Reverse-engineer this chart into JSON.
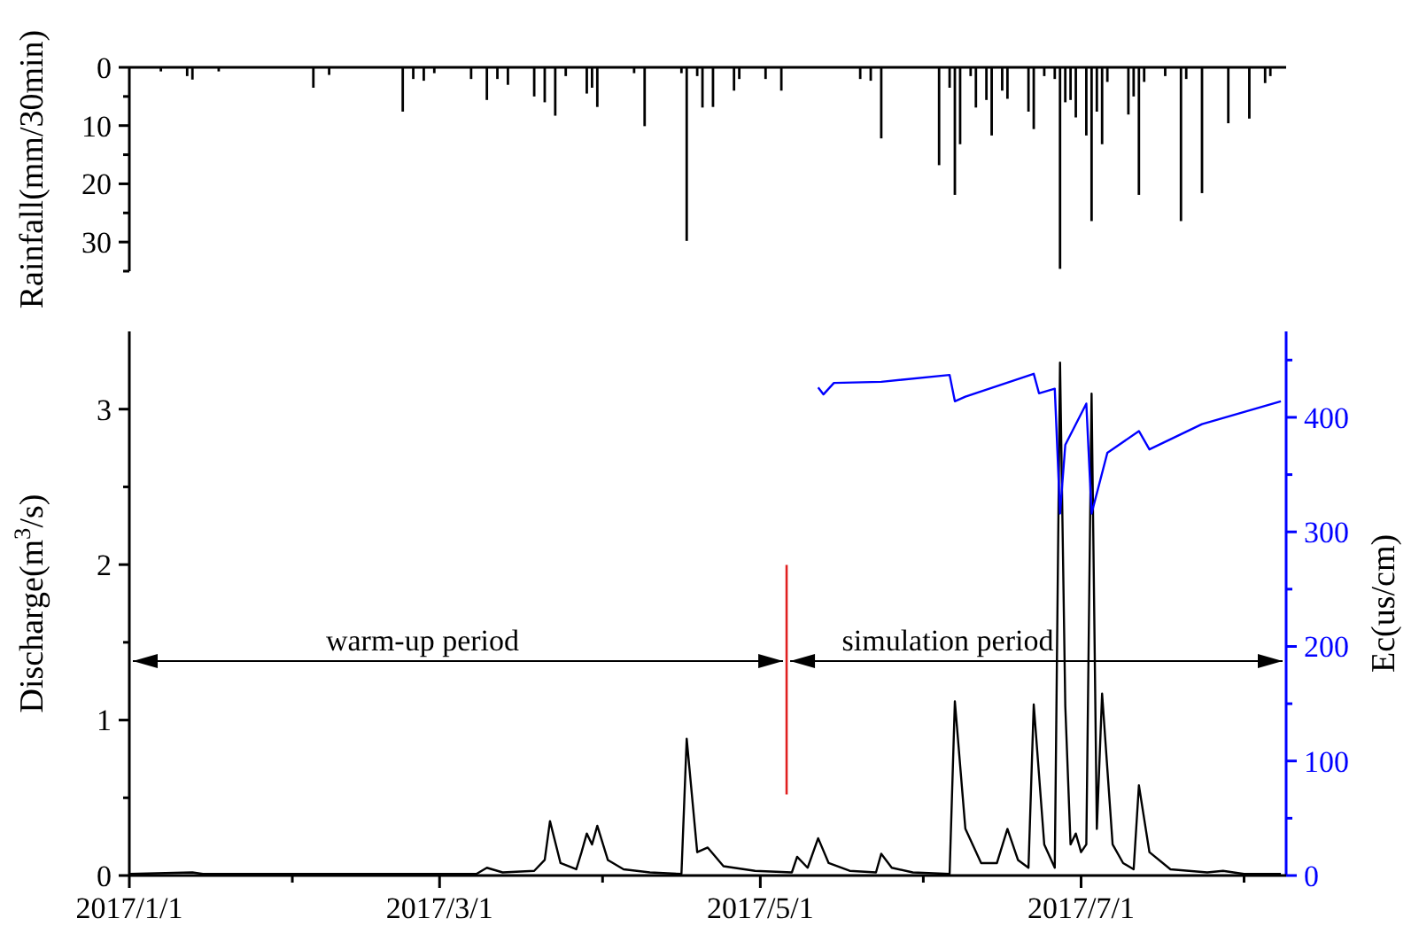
{
  "chart_data": [
    {
      "type": "bar",
      "ylabel": "Rainfall(mm/30min)",
      "tick_labels": "y",
      "grid": false,
      "xlim": [
        "2017-01-01",
        "2017-08-09"
      ],
      "ylim": [
        35,
        0
      ],
      "yticks": [
        0,
        {
          "value": 5,
          "label": null
        },
        10,
        {
          "value": 15,
          "label": null
        },
        20,
        {
          "value": 25,
          "label": null
        },
        30,
        {
          "value": 35,
          "label": null
        }
      ],
      "color": "#000000",
      "x": [
        "2017-01-07",
        "2017-01-12",
        "2017-01-13",
        "2017-01-18",
        "2017-02-05",
        "2017-02-08",
        "2017-02-22",
        "2017-02-24",
        "2017-02-26",
        "2017-02-28",
        "2017-03-07",
        "2017-03-10",
        "2017-03-12",
        "2017-03-14",
        "2017-03-19",
        "2017-03-21",
        "2017-03-23",
        "2017-03-25",
        "2017-03-29",
        "2017-03-30",
        "2017-03-31",
        "2017-04-07",
        "2017-04-09",
        "2017-04-16",
        "2017-04-17",
        "2017-04-19",
        "2017-04-20",
        "2017-04-22",
        "2017-04-26",
        "2017-04-27",
        "2017-05-02",
        "2017-05-05",
        "2017-05-20",
        "2017-05-22",
        "2017-05-24",
        "2017-06-04",
        "2017-06-06",
        "2017-06-07",
        "2017-06-08",
        "2017-06-10",
        "2017-06-11",
        "2017-06-13",
        "2017-06-14",
        "2017-06-16",
        "2017-06-17",
        "2017-06-21",
        "2017-06-22",
        "2017-06-24",
        "2017-06-26",
        "2017-06-27",
        "2017-06-28",
        "2017-06-29",
        "2017-06-30",
        "2017-07-02",
        "2017-07-03",
        "2017-07-04",
        "2017-07-05",
        "2017-07-06",
        "2017-07-10",
        "2017-07-11",
        "2017-07-12",
        "2017-07-13",
        "2017-07-17",
        "2017-07-20",
        "2017-07-21",
        "2017-07-24",
        "2017-07-29",
        "2017-08-02",
        "2017-08-05",
        "2017-08-06"
      ],
      "values": [
        0.7,
        1.5,
        2.1,
        0.7,
        3.5,
        1.3,
        7.6,
        2,
        2.3,
        1,
        2,
        5.6,
        2,
        3,
        5,
        6,
        8.3,
        1.5,
        4.5,
        3.5,
        6.8,
        1,
        10.1,
        1,
        29.8,
        1.5,
        6.9,
        6.8,
        4,
        2,
        2,
        4,
        2,
        2.3,
        12.2,
        16.8,
        3.5,
        21.9,
        13.2,
        1.5,
        6.9,
        5.6,
        11.7,
        4,
        5.4,
        7.6,
        10.6,
        1.5,
        2,
        34.6,
        6,
        5.6,
        8.6,
        11.7,
        26.4,
        7.6,
        13.2,
        2.5,
        8.1,
        5,
        21.9,
        2.5,
        1.5,
        26.4,
        2,
        21.6,
        9.6,
        8.8,
        2.7,
        1.5
      ]
    },
    {
      "type": "line",
      "ylabel": "Discharge(m$^{3}$/s)",
      "y2label": "Ec(us/cm)",
      "grid": false,
      "marker": "none",
      "line_style": "solid",
      "xlim": [
        "2017-01-01",
        "2017-08-09"
      ],
      "xticks": [
        {
          "value": "2017-01-01",
          "label": "2017/1/1"
        },
        {
          "value": "2017-02-01",
          "label": null
        },
        {
          "value": "2017-03-01",
          "label": "2017/3/1"
        },
        {
          "value": "2017-04-01",
          "label": null
        },
        {
          "value": "2017-05-01",
          "label": "2017/5/1"
        },
        {
          "value": "2017-06-01",
          "label": null
        },
        {
          "value": "2017-07-01",
          "label": "2017/7/1"
        },
        {
          "value": "2017-08-01",
          "label": null
        }
      ],
      "ylim": [
        0,
        3.5
      ],
      "yticks": [
        0,
        {
          "value": 0.5,
          "label": null
        },
        1,
        {
          "value": 1.5,
          "label": null
        },
        2,
        {
          "value": 2.5,
          "label": null
        },
        3
      ],
      "y2lim": [
        0,
        475
      ],
      "y2ticks": [
        0,
        {
          "value": 50,
          "label": null
        },
        100,
        {
          "value": 150,
          "label": null
        },
        200,
        {
          "value": 250,
          "label": null
        },
        300,
        {
          "value": 350,
          "label": null
        },
        400,
        {
          "value": 450,
          "label": null
        }
      ],
      "series": [
        {
          "color": "#000000",
          "x": [
            "2017-01-01",
            "2017-01-13",
            "2017-01-15",
            "2017-03-02",
            "2017-03-08",
            "2017-03-10",
            "2017-03-13",
            "2017-03-19",
            "2017-03-21",
            "2017-03-22",
            "2017-03-24",
            "2017-03-27",
            "2017-03-28",
            "2017-03-29",
            "2017-03-30",
            "2017-03-31",
            "2017-04-02",
            "2017-04-05",
            "2017-04-10",
            "2017-04-16",
            "2017-04-17",
            "2017-04-19",
            "2017-04-21",
            "2017-04-24",
            "2017-04-30",
            "2017-05-07",
            "2017-05-08",
            "2017-05-10",
            "2017-05-12",
            "2017-05-14",
            "2017-05-18",
            "2017-05-23",
            "2017-05-24",
            "2017-05-26",
            "2017-05-30",
            "2017-06-06",
            "2017-06-07",
            "2017-06-09",
            "2017-06-12",
            "2017-06-15",
            "2017-06-17",
            "2017-06-19",
            "2017-06-21",
            "2017-06-22",
            "2017-06-24",
            "2017-06-26",
            "2017-06-27",
            "2017-06-28",
            "2017-06-29",
            "2017-06-30",
            "2017-07-01",
            "2017-07-02",
            "2017-07-03",
            "2017-07-04",
            "2017-07-05",
            "2017-07-07",
            "2017-07-09",
            "2017-07-11",
            "2017-07-12",
            "2017-07-14",
            "2017-07-18",
            "2017-07-25",
            "2017-07-28",
            "2017-08-01",
            "2017-08-08"
          ],
          "values": [
            0.01,
            0.02,
            0.01,
            0.01,
            0.01,
            0.05,
            0.02,
            0.03,
            0.1,
            0.35,
            0.08,
            0.04,
            0.15,
            0.27,
            0.2,
            0.32,
            0.1,
            0.04,
            0.02,
            0.01,
            0.88,
            0.15,
            0.18,
            0.06,
            0.03,
            0.02,
            0.12,
            0.05,
            0.24,
            0.08,
            0.03,
            0.02,
            0.14,
            0.05,
            0.02,
            0.01,
            1.12,
            0.3,
            0.08,
            0.08,
            0.3,
            0.1,
            0.05,
            1.1,
            0.2,
            0.05,
            3.3,
            1.09,
            0.2,
            0.27,
            0.15,
            0.2,
            3.1,
            0.3,
            1.17,
            0.2,
            0.08,
            0.04,
            0.58,
            0.15,
            0.04,
            0.02,
            0.03,
            0.01,
            0.01
          ]
        },
        {
          "color": "#0000ff",
          "axis": "y2",
          "x": [
            "2017-05-12",
            "2017-05-13",
            "2017-05-15",
            "2017-05-24",
            "2017-06-06",
            "2017-06-07",
            "2017-06-09",
            "2017-06-22",
            "2017-06-23",
            "2017-06-26",
            "2017-06-27",
            "2017-06-28",
            "2017-07-02",
            "2017-07-03",
            "2017-07-06",
            "2017-07-12",
            "2017-07-14",
            "2017-07-24",
            "2017-08-08"
          ],
          "values": [
            426,
            420,
            430,
            431,
            437,
            414,
            418,
            438,
            421,
            425,
            316,
            376,
            412,
            316,
            369,
            388,
            372,
            394,
            414
          ]
        }
      ],
      "ref_lines": [
        {
          "axis": "x",
          "value": "2017-05-06",
          "color": "#e02020"
        }
      ],
      "annotations": [
        "warm-up period",
        "simulation period"
      ]
    }
  ]
}
